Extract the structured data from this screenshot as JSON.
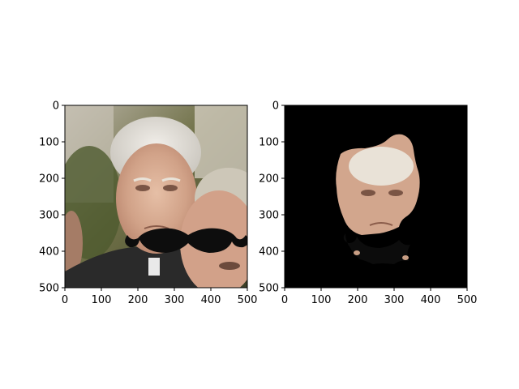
{
  "chart_data": [
    {
      "type": "image",
      "subplot": "left",
      "content": "photo of an older white-haired man with a black mustache overlay; a second man at lower right",
      "xlim": [
        0,
        500
      ],
      "ylim": [
        500,
        0
      ],
      "xticks": [
        0,
        100,
        200,
        300,
        400,
        500
      ],
      "yticks": [
        0,
        100,
        200,
        300,
        400,
        500
      ],
      "grid": false,
      "mustache": {
        "x_range": [
          165,
          440
        ],
        "y_range": [
          330,
          405
        ]
      }
    },
    {
      "type": "image",
      "subplot": "right",
      "content": "segmented face region on black background with mustache overlay",
      "xlim": [
        0,
        500
      ],
      "ylim": [
        500,
        0
      ],
      "xticks": [
        0,
        100,
        200,
        300,
        400,
        500
      ],
      "yticks": [
        0,
        100,
        200,
        300,
        400,
        500
      ],
      "grid": false,
      "background_color": "#000000"
    }
  ]
}
